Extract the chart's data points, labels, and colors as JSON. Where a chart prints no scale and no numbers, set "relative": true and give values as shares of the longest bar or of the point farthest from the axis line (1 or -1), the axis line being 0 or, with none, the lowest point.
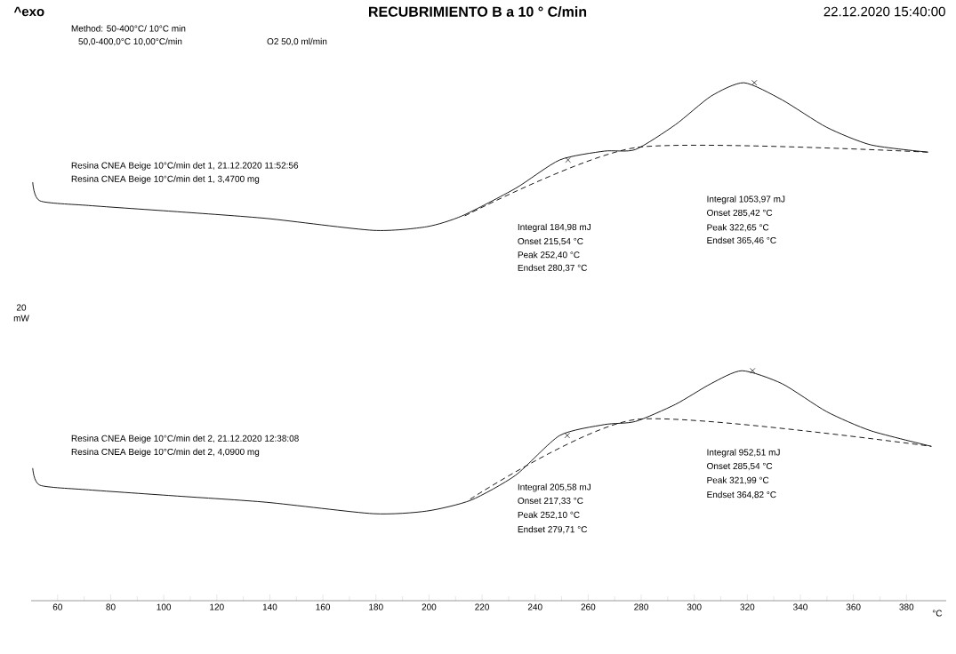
{
  "chart_data": {
    "type": "line",
    "title": "RECUBRIMIENTO B a 10 ° C/min",
    "xlabel": "°C",
    "ylabel": "20 mW",
    "relative": true,
    "marker": "none",
    "line_style": "solid",
    "xlim": [
      50,
      395
    ],
    "xticks": [
      60,
      80,
      100,
      120,
      140,
      160,
      180,
      200,
      220,
      240,
      260,
      280,
      300,
      320,
      340,
      360,
      380
    ],
    "series": [
      {
        "color": "#000000",
        "x": [
          50.6,
          53.3,
          71.7,
          105.2,
          138.8,
          179.0,
          199.1,
          212.5,
          232.6,
          249.3,
          266.1,
          277.8,
          292.9,
          306.3,
          318.7,
          333.1,
          349.9,
          366.6,
          388.1
        ],
        "values": [
          0.808,
          0.772,
          0.763,
          0.751,
          0.738,
          0.715,
          0.722,
          0.743,
          0.796,
          0.851,
          0.868,
          0.871,
          0.919,
          0.974,
          1.0,
          0.967,
          0.914,
          0.88,
          0.866
        ]
      },
      {
        "color": "#000000",
        "line_style": "dashed",
        "x": [
          213.5,
          278.2,
          388.1
        ],
        "values": [
          0.743,
          0.875,
          0.866
        ]
      },
      {
        "color": "#000000",
        "x": [
          50.6,
          53.3,
          71.7,
          105.2,
          138.8,
          179.0,
          199.1,
          215.8,
          232.6,
          249.3,
          266.1,
          277.8,
          292.9,
          306.3,
          318.0,
          333.1,
          349.9,
          366.6,
          389.4
        ],
        "values": [
          0.256,
          0.223,
          0.214,
          0.202,
          0.19,
          0.168,
          0.173,
          0.194,
          0.242,
          0.319,
          0.34,
          0.346,
          0.379,
          0.419,
          0.444,
          0.419,
          0.365,
          0.328,
          0.298
        ]
      },
      {
        "color": "#000000",
        "line_style": "dashed",
        "x": [
          215.5,
          278.2,
          389.4
        ],
        "values": [
          0.196,
          0.35,
          0.298
        ]
      },
      {
        "color": "#000000",
        "type": "scatter",
        "marker": "cross",
        "x": [
          252.4,
          322.65,
          252.1,
          321.99
        ],
        "values": [
          0.851,
          1.0,
          0.319,
          0.444
        ]
      }
    ],
    "annotations": [
      "^exo",
      "22.12.2020 15:40:00",
      "Method: 50-400°C/ 10°C min",
      "50,0-400,0°C 10,00°C/min",
      "O2 50,0 ml/min",
      "Resina CNEA Beige 10°C/min det 1, 21.12.2020 11:52:56",
      "Resina CNEA Beige 10°C/min det 1, 3,4700 mg",
      "Integral  184,98 mJ",
      "Onset  215,54 °C",
      "Peak  252,40 °C",
      "Endset  280,37 °C",
      "Integral  1053,97 mJ",
      "Onset  285,42 °C",
      "Peak  322,65 °C",
      "Endset  365,46 °C",
      "Resina CNEA Beige 10°C/min det 2, 21.12.2020 12:38:08",
      "Resina CNEA Beige 10°C/min det 2, 4,0900 mg",
      "Integral  205,58 mJ",
      "Onset  217,33 °C",
      "Peak  252,10 °C",
      "Endset  279,71 °C",
      "Integral  952,51 mJ",
      "Onset  285,54 °C",
      "Peak  321,99 °C",
      "Endset  364,82 °C"
    ]
  }
}
